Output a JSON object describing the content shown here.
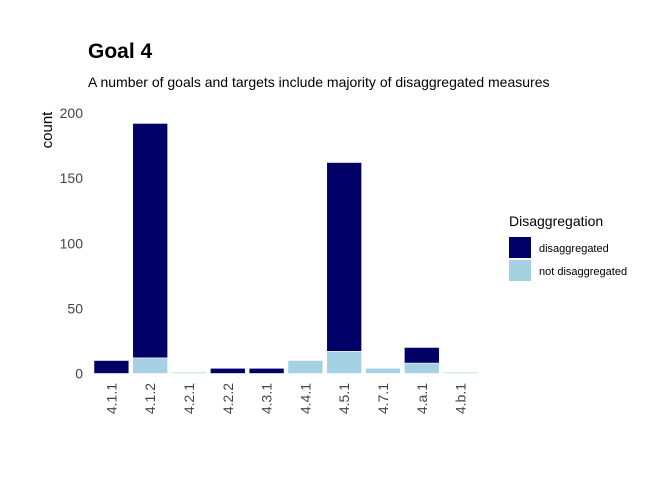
{
  "chart_data": {
    "type": "bar",
    "stacked": true,
    "title": "Goal  4",
    "subtitle": "A number of goals and targets include majority of disaggregated measures",
    "xlabel": "",
    "ylabel": "count",
    "ylim": [
      0,
      200
    ],
    "yticks": [
      0,
      50,
      100,
      150,
      200
    ],
    "categories": [
      "4.1.1",
      "4.1.2",
      "4.2.1",
      "4.2.2",
      "4.3.1",
      "4.4.1",
      "4.5.1",
      "4.7.1",
      "4.a.1",
      "4.b.1"
    ],
    "series": [
      {
        "name": "not disaggregated",
        "color": "#a6d1e3",
        "values": [
          0,
          12,
          1,
          0,
          0,
          10,
          17,
          4,
          8,
          1
        ]
      },
      {
        "name": "disaggregated",
        "color": "#000066",
        "values": [
          10,
          180,
          0,
          4,
          4,
          0,
          145,
          0,
          12,
          0
        ]
      }
    ],
    "legend": {
      "title": "Disaggregation",
      "placement": "right",
      "entries": [
        "disaggregated",
        "not disaggregated"
      ]
    },
    "grid": false
  }
}
